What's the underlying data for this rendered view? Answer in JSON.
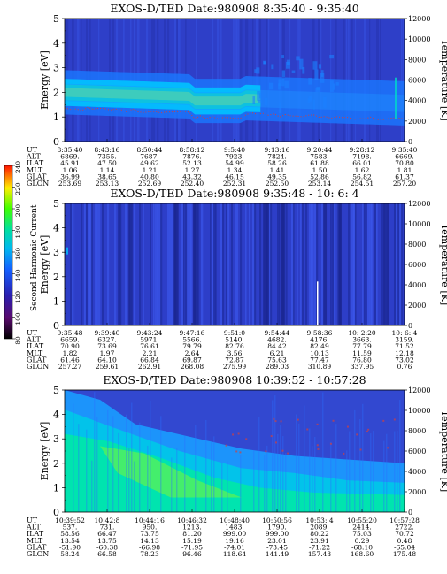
{
  "colorbar": {
    "label": "Second Harmonic Current",
    "ticks": [
      "80",
      "100",
      "120",
      "140",
      "160",
      "180",
      "200",
      "220",
      "240"
    ]
  },
  "chart_data": [
    {
      "type": "heatmap",
      "title": "EXOS-D/TED   Date:980908   8:35:40 - 9:35:40",
      "ylabel": "Energy [eV]",
      "ylabel_right": "Temperature [K]",
      "ylim": [
        0,
        5
      ],
      "y2lim": [
        0,
        12000
      ],
      "yticks": [
        "0",
        "1",
        "2",
        "3",
        "4",
        "5"
      ],
      "y2ticks": [
        "0",
        "2000",
        "4000",
        "6000",
        "8000",
        "10000",
        "12000"
      ],
      "row_labels": [
        "UT",
        "ALT",
        "ILAT",
        "MLT",
        "GLAT",
        "GLON"
      ],
      "columns": [
        [
          "8:35:40",
          "6869.",
          "45.91",
          "1.06",
          "36.99",
          "253.69"
        ],
        [
          "8:43:16",
          "7355.",
          "47.50",
          "1.14",
          "38.65",
          "253.13"
        ],
        [
          "8:50:44",
          "7687.",
          "49.62",
          "1.21",
          "40.80",
          "252.69"
        ],
        [
          "8:58:12",
          "7876.",
          "52.13",
          "1.27",
          "43.32",
          "252.40"
        ],
        [
          "9:5:40",
          "7923.",
          "54.99",
          "1.34",
          "46.15",
          "252.31"
        ],
        [
          "9:13:16",
          "7824.",
          "58.26",
          "1.41",
          "49.35",
          "252.50"
        ],
        [
          "9:20:44",
          "7583.",
          "61.88",
          "1.50",
          "52.86",
          "253.14"
        ],
        [
          "9:28:12",
          "7198.",
          "66.01",
          "1.62",
          "56.82",
          "254.51"
        ],
        [
          "9:35:40",
          "6669.",
          "70.80",
          "1.81",
          "61.37",
          "257.20"
        ]
      ],
      "band": {
        "start_ev": 2.0,
        "end_ev": 1.55,
        "dip_ev": 1.45
      }
    },
    {
      "type": "heatmap",
      "title": "EXOS-D/TED   Date:980908   9:35:48 - 10: 6: 4",
      "ylabel": "Energy [eV]",
      "ylabel_right": "Temperature [K]",
      "ylim": [
        0,
        5
      ],
      "y2lim": [
        0,
        12000
      ],
      "yticks": [
        "0",
        "1",
        "2",
        "3",
        "4",
        "5"
      ],
      "y2ticks": [
        "0",
        "2000",
        "4000",
        "6000",
        "8000",
        "10000",
        "12000"
      ],
      "row_labels": [
        "UT",
        "ALT",
        "ILAT",
        "MLT",
        "GLAT",
        "GLON"
      ],
      "columns": [
        [
          "9:35:48",
          "6659.",
          "70.90",
          "1.82",
          "61.46",
          "257.27"
        ],
        [
          "9:39:40",
          "6327.",
          "73.69",
          "1.97",
          "64.10",
          "259.61"
        ],
        [
          "9:43:24",
          "5971.",
          "76.61",
          "2.21",
          "66.84",
          "262.91"
        ],
        [
          "9:47:16",
          "5566.",
          "79.79",
          "2.64",
          "69.87",
          "268.08"
        ],
        [
          "9:51:0",
          "5140.",
          "82.76",
          "3.56",
          "72.87",
          "275.99"
        ],
        [
          "9:54:44",
          "4682.",
          "84.42",
          "6.21",
          "75.63",
          "289.03"
        ],
        [
          "9:58:36",
          "4176.",
          "82.49",
          "10.13",
          "77.47",
          "310.89"
        ],
        [
          "10: 2:20",
          "3663.",
          "77.79",
          "11.59",
          "76.80",
          "337.95"
        ],
        [
          "10: 6: 4",
          "3159.",
          "71.52",
          "12.18",
          "73.02",
          "0.76"
        ]
      ]
    },
    {
      "type": "heatmap",
      "title": "EXOS-D/TED   Date:980908   10:39:52 - 10:57:28",
      "ylabel": "Energy [eV]",
      "ylabel_right": "Temperature [K]",
      "ylim": [
        0,
        5
      ],
      "y2lim": [
        0,
        12000
      ],
      "yticks": [
        "0",
        "1",
        "2",
        "3",
        "4",
        "5"
      ],
      "y2ticks": [
        "0",
        "2000",
        "4000",
        "6000",
        "8000",
        "10000",
        "12000"
      ],
      "row_labels": [
        "UT",
        "ALT",
        "ILAT",
        "MLT",
        "GLAT",
        "GLON"
      ],
      "columns": [
        [
          "10:39:52",
          "537.",
          "58.56",
          "13.54",
          "-51.90",
          "58.24"
        ],
        [
          "10:42:8",
          "731.",
          "66.47",
          "13.75",
          "-60.38",
          "66.58"
        ],
        [
          "10:44:16",
          "950.",
          "73.75",
          "14.13",
          "-66.98",
          "78.23"
        ],
        [
          "10:46:32",
          "1213.",
          "81.20",
          "15.19",
          "-71.95",
          "96.46"
        ],
        [
          "10:48:40",
          "1483.",
          "999.00",
          "19.16",
          "-74.01",
          "118.64"
        ],
        [
          "10:50:56",
          "1790.",
          "999.00",
          "23.01",
          "-73.45",
          "141.49"
        ],
        [
          "10:53: 4",
          "2089.",
          "80.22",
          "23.91",
          "-71.22",
          "157.43"
        ],
        [
          "10:55:20",
          "2414.",
          "75.03",
          "0.29",
          "-68.10",
          "168.60"
        ],
        [
          "10:57:28",
          "2722.",
          "70.72",
          "0.48",
          "-65.04",
          "175.48"
        ]
      ]
    }
  ]
}
